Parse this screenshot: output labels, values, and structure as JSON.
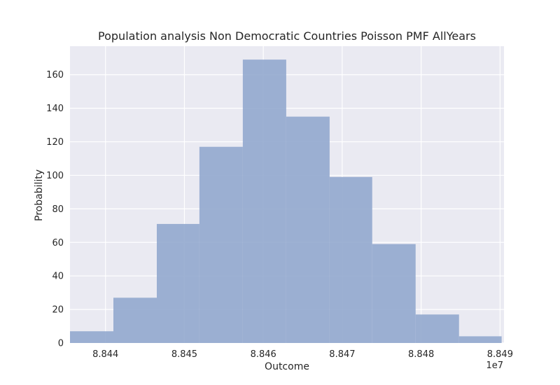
{
  "chart_data": {
    "type": "bar",
    "title": "Population analysis Non Democratic Countries Poisson PMF AllYears",
    "xlabel": "Outcome",
    "ylabel": "Probability",
    "x_offset_label": "1e7",
    "xlim": [
      8.84355,
      8.84905
    ],
    "ylim": [
      0,
      177
    ],
    "x_ticks": [
      8.844,
      8.845,
      8.846,
      8.847,
      8.848,
      8.849
    ],
    "x_tick_labels": [
      "8.844",
      "8.845",
      "8.846",
      "8.847",
      "8.848",
      "8.849"
    ],
    "y_ticks": [
      0,
      20,
      40,
      60,
      80,
      100,
      120,
      140,
      160
    ],
    "y_tick_labels": [
      "0",
      "20",
      "40",
      "60",
      "80",
      "100",
      "120",
      "140",
      "160"
    ],
    "bin_edges": [
      8.84355,
      8.8441,
      8.84465,
      8.84519,
      8.84574,
      8.84629,
      8.84684,
      8.84738,
      8.84793,
      8.84848,
      8.84902
    ],
    "values": [
      7,
      27,
      71,
      117,
      169,
      135,
      99,
      59,
      17,
      4
    ],
    "grid": true,
    "colors": {
      "bar": "#8fa6cd",
      "background": "#eaeaf2",
      "grid": "#ffffff",
      "text": "#262626"
    }
  }
}
